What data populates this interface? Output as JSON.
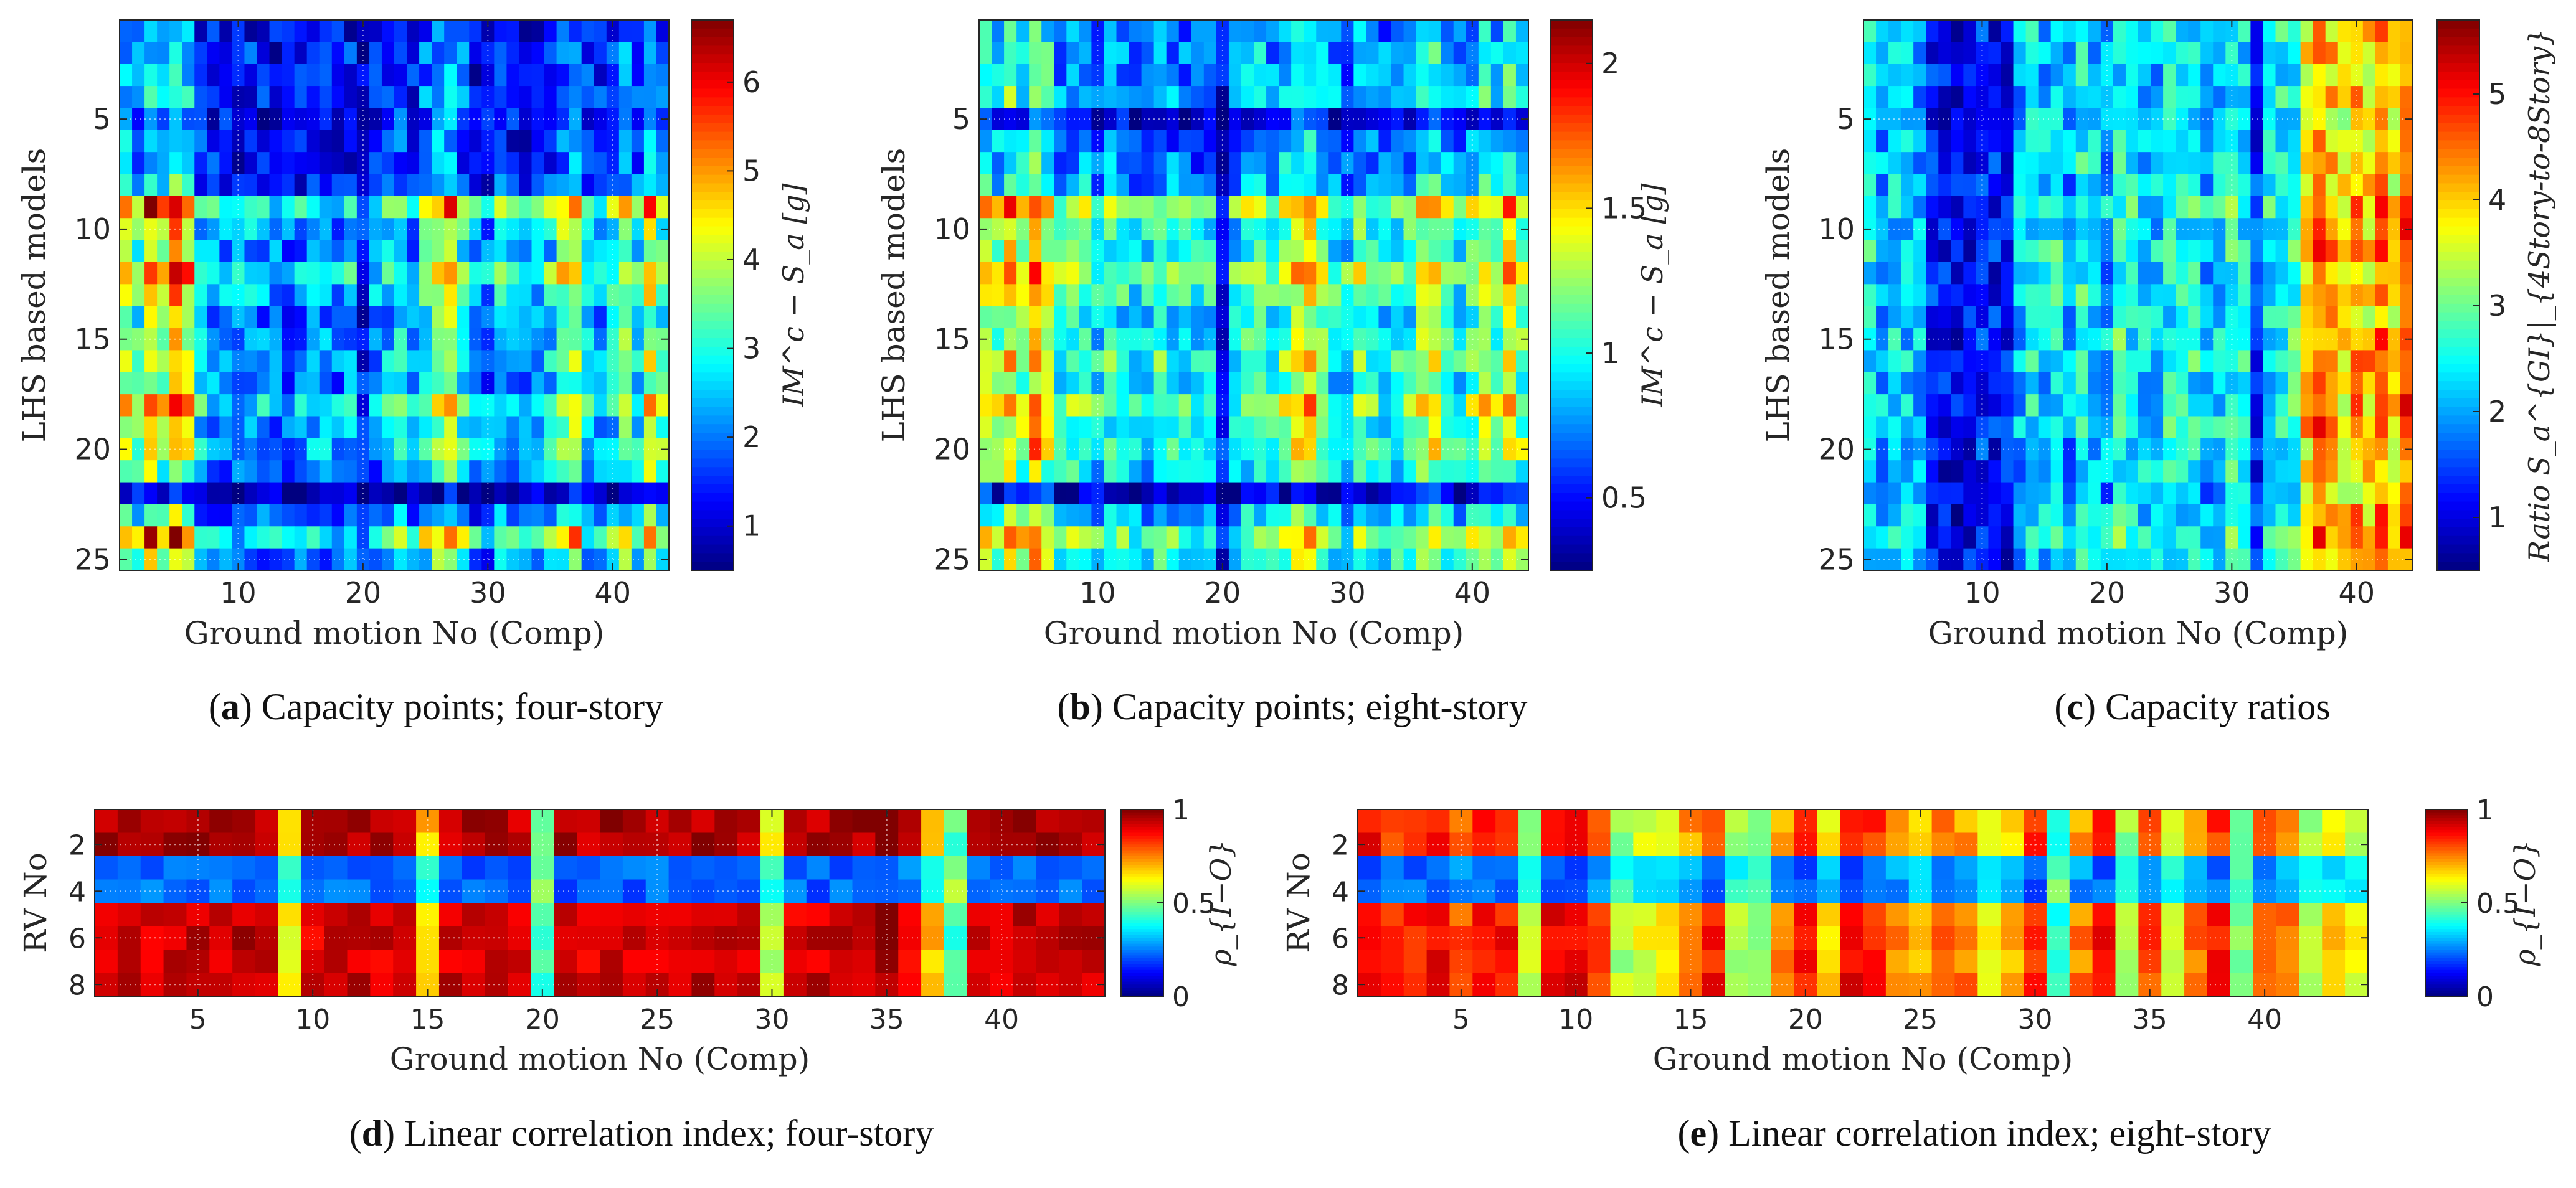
{
  "chart_data": [
    {
      "id": "a",
      "type": "heatmap",
      "caption_letter": "a",
      "caption_text": "Capacity points; four-story",
      "xlabel": "Ground motion No (Comp)",
      "ylabel": "LHS based models",
      "colorbar_label": "IM^c − S_a [g]",
      "n_cols": 44,
      "n_rows": 25,
      "x_ticks": [
        10,
        20,
        30,
        40
      ],
      "y_ticks": [
        5,
        10,
        15,
        20,
        25
      ],
      "clim": [
        0.5,
        6.7
      ],
      "colorbar_ticks": [
        1,
        2,
        3,
        4,
        5,
        6
      ],
      "col_profile": [
        2.4,
        2.0,
        2.7,
        2.2,
        2.9,
        2.5,
        1.5,
        1.4,
        1.3,
        1.2,
        1.4,
        1.3,
        1.2,
        1.2,
        1.3,
        1.4,
        1.3,
        1.2,
        1.4,
        0.8,
        1.3,
        1.5,
        1.7,
        1.3,
        1.9,
        2.2,
        2.4,
        1.8,
        1.3,
        1.2,
        1.6,
        1.3,
        1.2,
        1.4,
        1.6,
        2.1,
        2.3,
        1.5,
        1.3,
        1.6,
        2.2,
        1.7,
        2.5,
        1.9
      ],
      "row_profile": [
        0.9,
        1.0,
        0.95,
        1.05,
        0.9,
        1.0,
        0.95,
        1.1,
        2.3,
        1.7,
        1.6,
        2.1,
        1.8,
        1.5,
        1.6,
        1.7,
        1.5,
        2.0,
        1.6,
        1.8,
        1.5,
        0.5,
        1.3,
        2.2,
        1.5
      ]
    },
    {
      "id": "b",
      "type": "heatmap",
      "caption_letter": "b",
      "caption_text": "Capacity points; eight-story",
      "xlabel": "Ground motion No (Comp)",
      "ylabel": "LHS based models",
      "colorbar_label": "IM^c − S_a [g]",
      "n_cols": 44,
      "n_rows": 25,
      "x_ticks": [
        10,
        20,
        30,
        40
      ],
      "y_ticks": [
        5,
        10,
        15,
        20,
        25
      ],
      "clim": [
        0.25,
        2.15
      ],
      "colorbar_ticks": [
        0.5,
        1,
        1.5,
        2
      ],
      "col_profile": [
        1.0,
        0.9,
        1.1,
        0.95,
        1.2,
        1.0,
        0.75,
        0.8,
        0.85,
        0.7,
        0.8,
        0.75,
        0.7,
        0.7,
        0.8,
        0.75,
        0.7,
        0.7,
        0.75,
        0.4,
        0.7,
        0.8,
        0.85,
        0.75,
        0.9,
        1.0,
        1.1,
        0.9,
        0.75,
        0.7,
        0.85,
        0.75,
        0.7,
        0.75,
        0.8,
        0.95,
        1.0,
        0.8,
        0.7,
        0.85,
        1.0,
        0.85,
        1.05,
        0.9
      ],
      "row_profile": [
        0.95,
        1.0,
        1.0,
        1.05,
        0.6,
        0.9,
        0.95,
        1.0,
        1.6,
        1.3,
        1.3,
        1.6,
        1.4,
        1.2,
        1.3,
        1.4,
        1.2,
        1.5,
        1.3,
        1.4,
        1.2,
        0.5,
        1.1,
        1.5,
        1.3
      ]
    },
    {
      "id": "c",
      "type": "heatmap",
      "caption_letter": "c",
      "caption_text": "Capacity ratios",
      "xlabel": "Ground motion No (Comp)",
      "ylabel": "LHS based models",
      "colorbar_label": "Ratio S_a^{GI}|_{4Story-to-8Story}",
      "n_cols": 44,
      "n_rows": 25,
      "x_ticks": [
        10,
        20,
        30,
        40
      ],
      "y_ticks": [
        5,
        10,
        15,
        20,
        25
      ],
      "clim": [
        0.5,
        5.7
      ],
      "colorbar_ticks": [
        1,
        2,
        3,
        4,
        5
      ],
      "col_profile": [
        2.3,
        2.0,
        2.2,
        2.1,
        2.0,
        1.2,
        1.1,
        1.0,
        1.1,
        1.3,
        1.2,
        1.1,
        2.0,
        2.3,
        2.2,
        2.4,
        1.9,
        2.5,
        2.2,
        2.0,
        2.6,
        2.4,
        2.2,
        2.1,
        2.5,
        2.3,
        2.4,
        2.1,
        2.2,
        2.6,
        2.3,
        1.3,
        2.4,
        2.5,
        2.6,
        3.8,
        4.2,
        4.0,
        3.6,
        4.1,
        3.8,
        4.3,
        3.7,
        4.5
      ],
      "row_profile": [
        1.0,
        1.0,
        0.95,
        1.0,
        0.95,
        1.0,
        1.0,
        1.0,
        1.1,
        1.05,
        1.1,
        1.0,
        1.05,
        1.0,
        1.05,
        1.1,
        1.0,
        1.05,
        1.1,
        1.0,
        1.0,
        0.9,
        1.05,
        1.1,
        1.0
      ]
    },
    {
      "id": "d",
      "type": "heatmap",
      "caption_letter": "d",
      "caption_text": "Linear correlation index; four-story",
      "xlabel": "Ground motion No (Comp)",
      "ylabel": "RV No",
      "colorbar_label": "ρ_{I−O}",
      "n_cols": 44,
      "n_rows": 8,
      "x_ticks": [
        5,
        10,
        15,
        20,
        25,
        30,
        35,
        40
      ],
      "y_ticks": [
        2,
        4,
        6,
        8
      ],
      "clim": [
        0,
        1
      ],
      "colorbar_ticks": [
        0,
        0.5,
        1
      ],
      "row_values": [
        0.9,
        0.9,
        0.25,
        0.25,
        0.87,
        0.88,
        0.87,
        0.88
      ],
      "col_shift": [
        0.05,
        0.06,
        0.04,
        0.05,
        0.07,
        0.05,
        0.06,
        0.04,
        -0.25,
        0.02,
        0.05,
        0.06,
        0.04,
        0.05,
        -0.22,
        0.04,
        0.05,
        0.06,
        0.04,
        -0.45,
        0.05,
        0.04,
        0.06,
        0.05,
        0.04,
        0.05,
        0.06,
        0.04,
        0.05,
        -0.3,
        0.02,
        0.05,
        0.04,
        0.06,
        0.1,
        0.03,
        -0.2,
        -0.45,
        0.05,
        0.04,
        0.06,
        0.05,
        0.04,
        0.05
      ]
    },
    {
      "id": "e",
      "type": "heatmap",
      "caption_letter": "e",
      "caption_text": "Linear correlation index; eight-story",
      "xlabel": "Ground motion No (Comp)",
      "ylabel": "RV No",
      "colorbar_label": "ρ_{I−O}",
      "n_cols": 44,
      "n_rows": 8,
      "x_ticks": [
        5,
        10,
        15,
        20,
        25,
        30,
        35,
        40
      ],
      "y_ticks": [
        2,
        4,
        6,
        8
      ],
      "clim": [
        0,
        1
      ],
      "colorbar_ticks": [
        0,
        0.5,
        1
      ],
      "row_values": [
        0.82,
        0.82,
        0.22,
        0.22,
        0.85,
        0.86,
        0.85,
        0.86
      ],
      "col_shift": [
        0.05,
        -0.02,
        0.0,
        0.03,
        -0.05,
        0.02,
        0.0,
        -0.3,
        0.04,
        0.03,
        -0.05,
        -0.3,
        -0.25,
        -0.2,
        -0.1,
        0.0,
        -0.3,
        -0.35,
        -0.1,
        0.0,
        -0.2,
        0.05,
        0.0,
        -0.1,
        -0.15,
        -0.05,
        -0.1,
        -0.25,
        -0.15,
        0.0,
        -0.45,
        -0.1,
        0.0,
        -0.3,
        -0.05,
        -0.25,
        -0.1,
        0.0,
        -0.35,
        -0.05,
        -0.1,
        -0.3,
        -0.2,
        -0.25
      ]
    }
  ]
}
